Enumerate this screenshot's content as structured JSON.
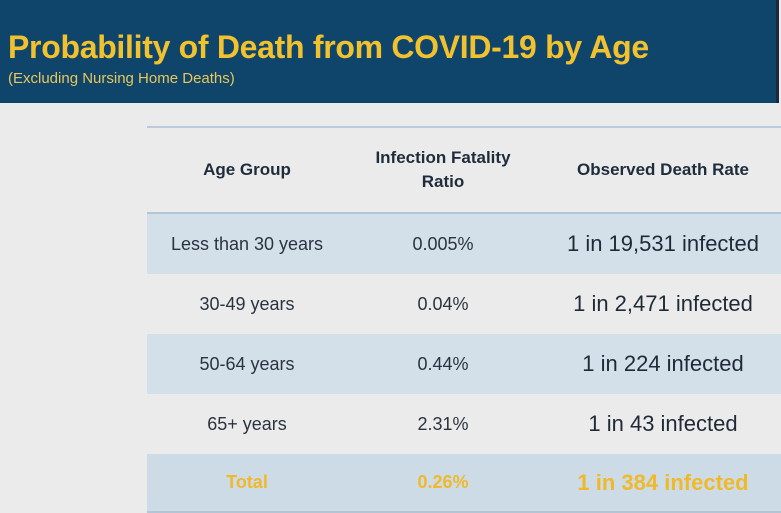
{
  "header": {
    "title": "Probability of Death from COVID-19 by Age",
    "subtitle": "(Excluding Nursing Home Deaths)"
  },
  "table": {
    "columns": [
      "Age Group",
      "Infection Fatality Ratio",
      "Observed Death Rate"
    ],
    "rows": [
      {
        "age": "Less than 30 years",
        "ifr": "0.005%",
        "rate": "1 in 19,531 infected"
      },
      {
        "age": "30-49 years",
        "ifr": "0.04%",
        "rate": "1 in 2,471 infected"
      },
      {
        "age": "50-64 years",
        "ifr": "0.44%",
        "rate": "1 in 224 infected"
      },
      {
        "age": "65+ years",
        "ifr": "2.31%",
        "rate": "1 in 43 infected"
      }
    ],
    "total": {
      "age": "Total",
      "ifr": "0.26%",
      "rate": "1 in 384 infected"
    }
  },
  "colors": {
    "banner": "#0f456b",
    "accent": "#f2c12e",
    "stripe": "#d3dfe9"
  }
}
